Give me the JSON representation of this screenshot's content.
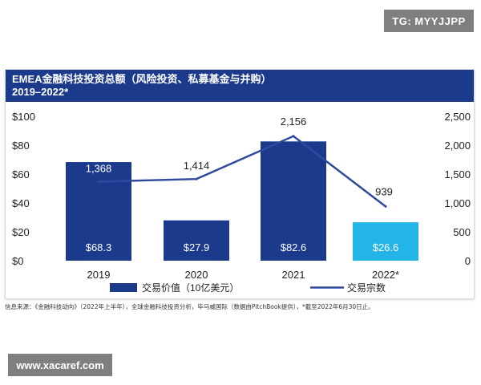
{
  "watermark_top": "TG: MYYJJPP",
  "watermark_bottom": "www.xacaref.com",
  "header": {
    "title_line1": "EMEA金融科技投资总额（风险投资、私募基金与并购）",
    "title_line2": "2019–2022*"
  },
  "source_note": "信息来源：《金融科技动向》（2022年上半年），全球金融科技投资分析，毕马威国际（数据由PitchBook提供），*截至2022年6月30日止。",
  "colors": {
    "bar": "#1b3a8c",
    "bar_highlight": "#23b4e8",
    "line": "#2c4a9e",
    "header_bg": "#1b3a8c"
  },
  "chart_data": {
    "type": "bar",
    "categories": [
      "2019",
      "2020",
      "2021",
      "2022*"
    ],
    "series": [
      {
        "name": "交易价值（10亿美元）",
        "type": "bar",
        "axis": "left",
        "values": [
          68.3,
          27.9,
          82.6,
          26.6
        ],
        "labels": [
          "$68.3",
          "$27.9",
          "$82.6",
          "$26.6"
        ]
      },
      {
        "name": "交易宗数",
        "type": "line",
        "axis": "right",
        "values": [
          1368,
          1414,
          2156,
          939
        ],
        "labels": [
          "1,368",
          "1,414",
          "2,156",
          "939"
        ]
      }
    ],
    "y_left": {
      "ylim": [
        0,
        100
      ],
      "ticks": [
        0,
        20,
        40,
        60,
        80,
        100
      ],
      "tick_labels": [
        "$0",
        "$20",
        "$40",
        "$60",
        "$80",
        "$100"
      ]
    },
    "y_right": {
      "ylim": [
        0,
        2500
      ],
      "ticks": [
        0,
        500,
        1000,
        1500,
        2000,
        2500
      ],
      "tick_labels": [
        "0",
        "500",
        "1,000",
        "1,500",
        "2,000",
        "2,500"
      ]
    },
    "highlight_category": "2022*",
    "legend_position": "bottom",
    "grid": false
  }
}
